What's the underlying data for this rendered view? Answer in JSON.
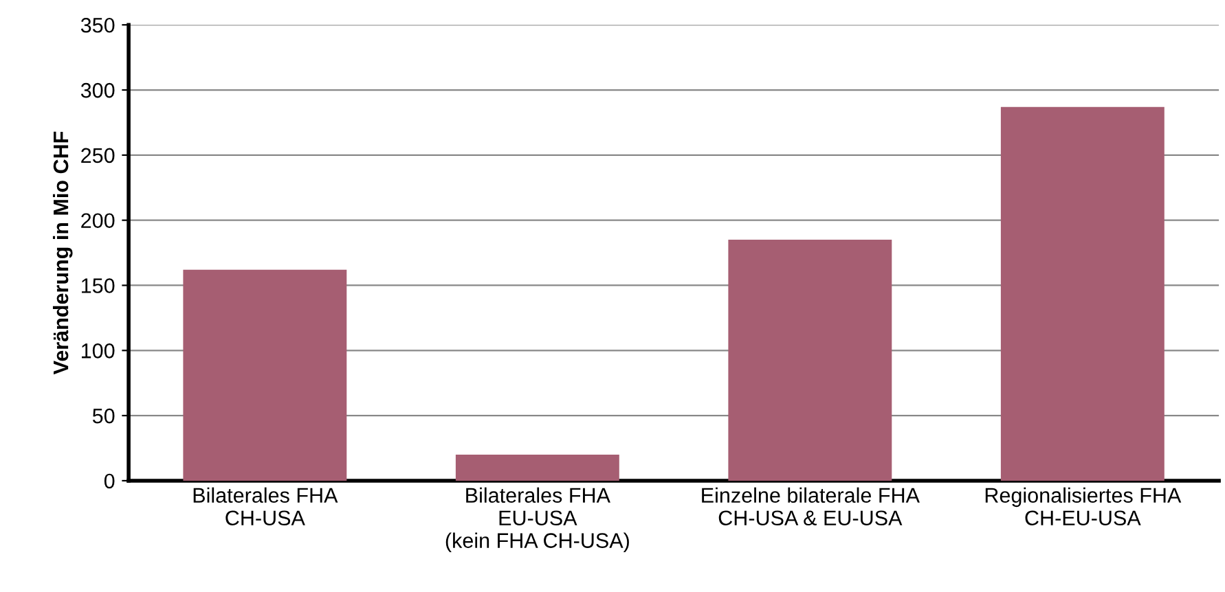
{
  "chart_data": {
    "type": "bar",
    "ylabel": "Veränderung in Mio CHF",
    "categories": [
      "Bilaterales FHA\nCH-USA",
      "Bilaterales FHA\nEU-USA\n(kein FHA CH-USA)",
      "Einzelne bilaterale FHA\nCH-USA & EU-USA",
      "Regionalisiertes FHA\nCH-EU-USA"
    ],
    "values": [
      162,
      20,
      185,
      287
    ],
    "color": "#a65e72",
    "ylim": [
      0,
      350
    ],
    "yticks": [
      0,
      50,
      100,
      150,
      200,
      250,
      300,
      350
    ],
    "grid": "y"
  }
}
